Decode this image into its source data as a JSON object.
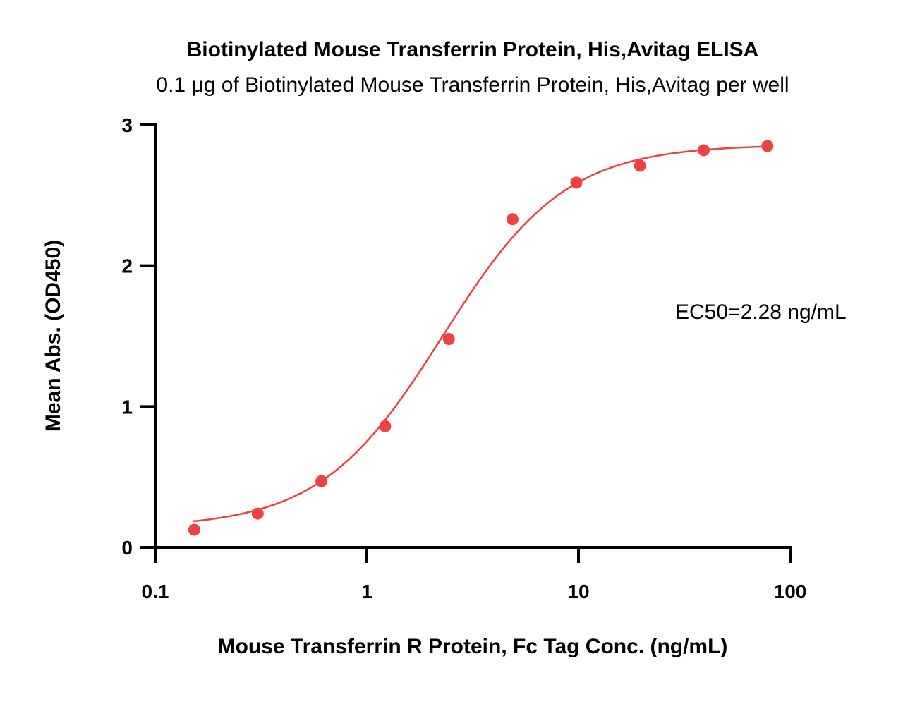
{
  "chart_data": {
    "type": "scatter",
    "title": "Biotinylated Mouse Transferrin Protein, His,Avitag ELISA",
    "subtitle": "0.1 μg of Biotinylated Mouse Transferrin Protein, His,Avitag per well",
    "xlabel": "Mouse Transferrin R Protein, Fc Tag Conc. (ng/mL)",
    "ylabel": "Mean Abs. (OD450)",
    "xscale": "log",
    "xlim": [
      0.1,
      100
    ],
    "ylim": [
      0,
      3
    ],
    "xticks": [
      "0.1",
      "1",
      "10",
      "100"
    ],
    "xtick_values": [
      0.1,
      1,
      10,
      100
    ],
    "yticks": [
      "0",
      "1",
      "2",
      "3"
    ],
    "ytick_values": [
      0,
      1,
      2,
      3
    ],
    "grid": false,
    "color": "#f04040",
    "series": [
      {
        "name": "data",
        "x": [
          0.153,
          0.305,
          0.61,
          1.22,
          2.44,
          4.88,
          9.77,
          19.53,
          39.06,
          78.13
        ],
        "y": [
          0.125,
          0.24,
          0.47,
          0.86,
          1.48,
          2.33,
          2.59,
          2.71,
          2.82,
          2.85
        ]
      }
    ],
    "fit": {
      "model": "4PL",
      "bottom": 0.14,
      "top": 2.86,
      "ec50": 2.28,
      "hill": 1.5
    },
    "annotation": "EC50=2.28 ng/mL"
  }
}
